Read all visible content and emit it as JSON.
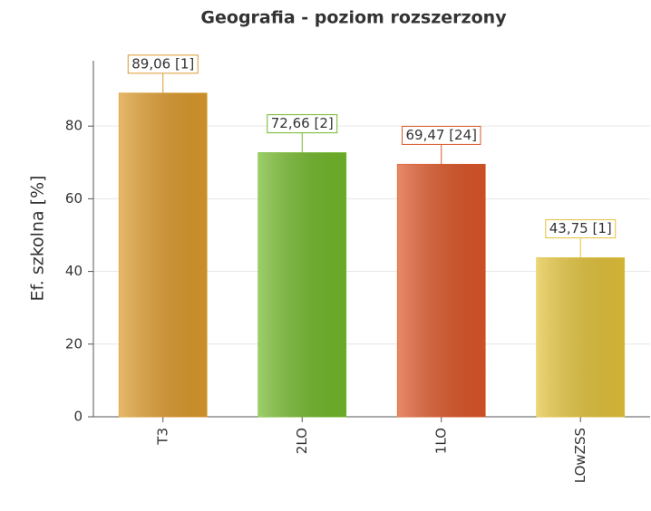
{
  "chart_data": {
    "type": "bar",
    "title": "Geografia - poziom rozszerzony",
    "ylabel": "Ef. szkolna [%]",
    "categories": [
      "T3",
      "2LO",
      "1LO",
      "LOwZSS"
    ],
    "values": [
      89.06,
      72.66,
      69.47,
      43.75
    ],
    "value_labels": [
      "89,06 [1]",
      "72,66 [2]",
      "69,47 [24]",
      "43,75 [1]"
    ],
    "colors": [
      "#dc9a2c",
      "#72b82a",
      "#dc5628",
      "#e2c23a"
    ],
    "ylim": [
      0,
      98
    ],
    "yticks": [
      0,
      20,
      40,
      60,
      80
    ],
    "grid": true
  }
}
